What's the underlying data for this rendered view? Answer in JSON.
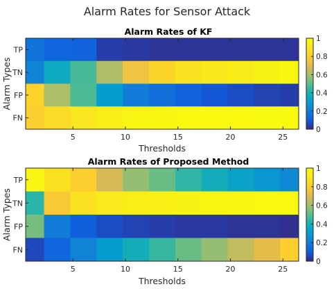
{
  "figure": {
    "title": "Alarm Rates for Sensor Attack"
  },
  "chart_data": [
    {
      "type": "heatmap",
      "title": "Alarm Rates of KF",
      "xlabel": "Thresholds",
      "ylabel": "Alarm Types",
      "rows": [
        "TP",
        "TN",
        "FP",
        "FN"
      ],
      "x": [
        1,
        3.5,
        6,
        8.5,
        11,
        13.5,
        16,
        18.5,
        21,
        23.5,
        26
      ],
      "xlim": [
        0.5,
        26.5
      ],
      "xticks": [
        5,
        10,
        15,
        20,
        25
      ],
      "clim": [
        0,
        1
      ],
      "colorbar_ticks": [
        0,
        0.2,
        0.4,
        0.6,
        0.8,
        1
      ],
      "colorbar_labels": [
        "0",
        "0.2",
        "0.4",
        "0.6",
        "0.8",
        "1"
      ],
      "colormap": "parula",
      "values": [
        [
          0.17,
          0.13,
          0.12,
          0.04,
          0.03,
          0.02,
          0.02,
          0.02,
          0.02,
          0.02,
          0.02
        ],
        [
          0.22,
          0.36,
          0.47,
          0.62,
          0.75,
          0.83,
          0.88,
          0.91,
          0.93,
          0.96,
          0.98
        ],
        [
          0.82,
          0.61,
          0.48,
          0.3,
          0.2,
          0.16,
          0.12,
          0.09,
          0.07,
          0.05,
          0.04
        ],
        [
          0.8,
          0.85,
          0.89,
          0.94,
          0.97,
          0.98,
          0.99,
          0.99,
          0.99,
          1.0,
          1.0
        ]
      ]
    },
    {
      "type": "heatmap",
      "title": "Alarm Rates of Proposed Method",
      "xlabel": "Thresholds",
      "ylabel": "Alarm Types",
      "rows": [
        "TP",
        "TN",
        "FP",
        "FN"
      ],
      "x": [
        1,
        3.5,
        6,
        8.5,
        11,
        13.5,
        16,
        18.5,
        21,
        23.5,
        26
      ],
      "xlim": [
        0.5,
        26.5
      ],
      "xticks": [
        5,
        10,
        15,
        20,
        25
      ],
      "clim": [
        0,
        1
      ],
      "colorbar_ticks": [
        0,
        0.2,
        0.4,
        0.6,
        0.8,
        1
      ],
      "colorbar_labels": [
        "0",
        "0.2",
        "0.4",
        "0.6",
        "0.8",
        "1"
      ],
      "colormap": "parula",
      "values": [
        [
          0.98,
          0.88,
          0.8,
          0.68,
          0.58,
          0.52,
          0.44,
          0.38,
          0.33,
          0.28,
          0.24
        ],
        [
          0.43,
          0.78,
          0.88,
          0.92,
          0.94,
          0.95,
          0.96,
          0.97,
          0.98,
          0.99,
          0.99
        ],
        [
          0.54,
          0.2,
          0.11,
          0.07,
          0.05,
          0.04,
          0.03,
          0.03,
          0.02,
          0.02,
          0.01
        ],
        [
          0.06,
          0.13,
          0.22,
          0.3,
          0.38,
          0.45,
          0.52,
          0.58,
          0.65,
          0.72,
          0.8
        ]
      ]
    }
  ]
}
